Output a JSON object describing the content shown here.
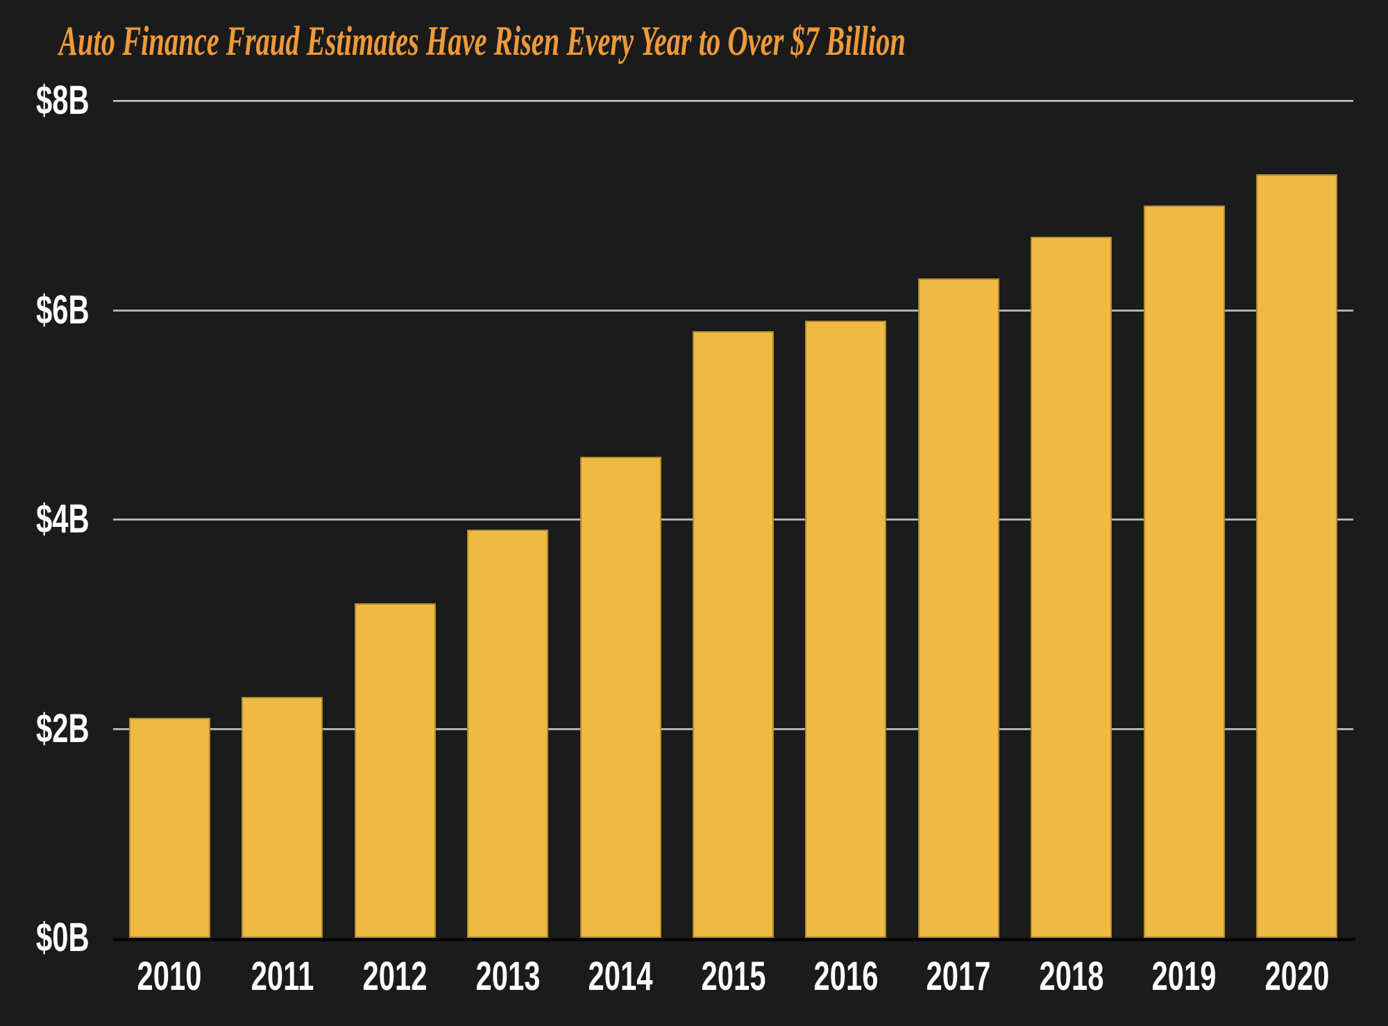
{
  "page": {
    "background_color": "#1a1b1a"
  },
  "chart_data": {
    "type": "bar",
    "title": "Auto Finance Fraud Estimates Have Risen Every Year to Over $7 Billion",
    "title_color": "#ee993b",
    "bar_color": "#eeba43",
    "grid": true,
    "legend": "none",
    "categories": [
      "2010",
      "2011",
      "2012",
      "2013",
      "2014",
      "2015",
      "2016",
      "2017",
      "2018",
      "2019",
      "2020"
    ],
    "values": [
      2.1,
      2.3,
      3.2,
      3.9,
      4.6,
      5.8,
      5.9,
      6.3,
      6.7,
      7.0,
      7.3
    ],
    "xlabel": "",
    "ylabel": "",
    "ylim": [
      0,
      8
    ],
    "y_ticks": [
      {
        "label": "$8B",
        "value": 8
      },
      {
        "label": "$6B",
        "value": 6
      },
      {
        "label": "$4B",
        "value": 4
      },
      {
        "label": "$2B",
        "value": 2
      },
      {
        "label": "$0B",
        "value": 0
      }
    ]
  }
}
